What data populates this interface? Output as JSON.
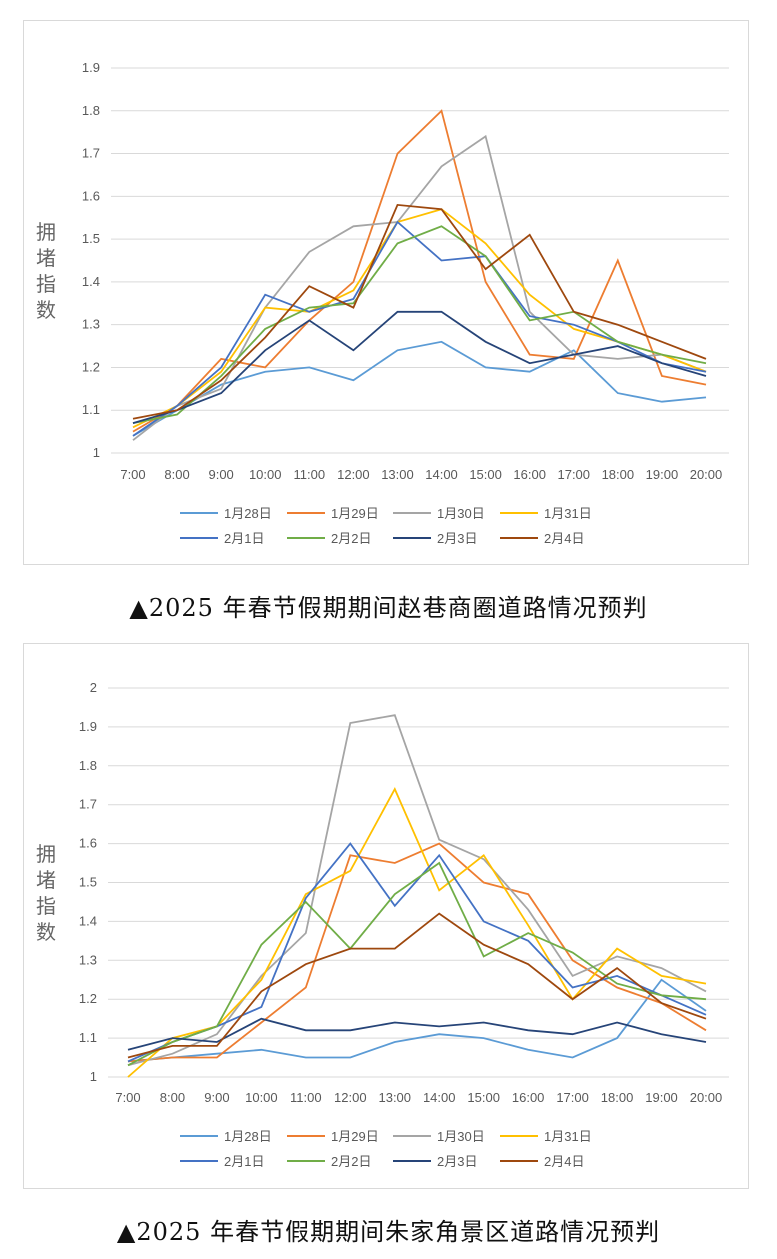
{
  "captions": [
    "▲2025 年春节假期期间赵巷商圈道路情况预判",
    "▲2025 年春节假期期间朱家角景区道路情况预判"
  ],
  "series_colors": {
    "1月28日": "#5b9bd5",
    "1月29日": "#ed7d31",
    "1月30日": "#a5a5a5",
    "1月31日": "#ffc000",
    "2月1日": "#4472c4",
    "2月2日": "#70ad47",
    "2月3日": "#264478",
    "2月4日": "#9e480e"
  },
  "chart_data": [
    {
      "type": "line",
      "title": "2025 年春节假期期间赵巷商圈道路情况预判",
      "xlabel": "",
      "ylabel": "拥堵指数",
      "categories": [
        "7:00",
        "8:00",
        "9:00",
        "10:00",
        "11:00",
        "12:00",
        "13:00",
        "14:00",
        "15:00",
        "16:00",
        "17:00",
        "18:00",
        "19:00",
        "20:00"
      ],
      "ylim": [
        1,
        1.9
      ],
      "yticks": [
        "1",
        "1.1",
        "1.2",
        "1.3",
        "1.4",
        "1.5",
        "1.6",
        "1.7",
        "1.8",
        "1.9"
      ],
      "grid": true,
      "legend": "bottom",
      "series": [
        {
          "name": "1月28日",
          "values": [
            1.04,
            1.1,
            1.16,
            1.19,
            1.2,
            1.17,
            1.24,
            1.26,
            1.2,
            1.19,
            1.24,
            1.14,
            1.12,
            1.13
          ]
        },
        {
          "name": "1月29日",
          "values": [
            1.05,
            1.11,
            1.22,
            1.2,
            1.31,
            1.4,
            1.7,
            1.8,
            1.4,
            1.23,
            1.22,
            1.45,
            1.18,
            1.16
          ]
        },
        {
          "name": "1月30日",
          "values": [
            1.03,
            1.11,
            1.15,
            1.34,
            1.47,
            1.53,
            1.54,
            1.67,
            1.74,
            1.33,
            1.23,
            1.22,
            1.23,
            1.19
          ]
        },
        {
          "name": "1月31日",
          "values": [
            1.06,
            1.11,
            1.19,
            1.34,
            1.33,
            1.38,
            1.54,
            1.57,
            1.49,
            1.37,
            1.29,
            1.26,
            1.23,
            1.19
          ]
        },
        {
          "name": "2月1日",
          "values": [
            1.04,
            1.11,
            1.2,
            1.37,
            1.33,
            1.36,
            1.54,
            1.45,
            1.46,
            1.32,
            1.3,
            1.26,
            1.21,
            1.19
          ]
        },
        {
          "name": "2月2日",
          "values": [
            1.07,
            1.09,
            1.18,
            1.29,
            1.34,
            1.35,
            1.49,
            1.53,
            1.46,
            1.31,
            1.33,
            1.26,
            1.23,
            1.21
          ]
        },
        {
          "name": "2月3日",
          "values": [
            1.07,
            1.1,
            1.14,
            1.24,
            1.31,
            1.24,
            1.33,
            1.33,
            1.26,
            1.21,
            1.23,
            1.25,
            1.21,
            1.18
          ]
        },
        {
          "name": "2月4日",
          "values": [
            1.08,
            1.1,
            1.17,
            1.27,
            1.39,
            1.34,
            1.58,
            1.57,
            1.43,
            1.51,
            1.33,
            1.3,
            1.26,
            1.22
          ]
        }
      ]
    },
    {
      "type": "line",
      "title": "2025 年春节假期期间朱家角景区道路情况预判",
      "xlabel": "",
      "ylabel": "拥堵指数",
      "categories": [
        "7:00",
        "8:00",
        "9:00",
        "10:00",
        "11:00",
        "12:00",
        "13:00",
        "14:00",
        "15:00",
        "16:00",
        "17:00",
        "18:00",
        "19:00",
        "20:00"
      ],
      "ylim": [
        1,
        2
      ],
      "yticks": [
        "1",
        "1.1",
        "1.2",
        "1.3",
        "1.4",
        "1.5",
        "1.6",
        "1.7",
        "1.8",
        "1.9",
        "2"
      ],
      "grid": true,
      "legend": "bottom",
      "series": [
        {
          "name": "1月28日",
          "values": [
            1.04,
            1.05,
            1.06,
            1.07,
            1.05,
            1.05,
            1.09,
            1.11,
            1.1,
            1.07,
            1.05,
            1.1,
            1.25,
            1.17
          ]
        },
        {
          "name": "1月29日",
          "values": [
            1.04,
            1.05,
            1.05,
            1.14,
            1.23,
            1.57,
            1.55,
            1.6,
            1.5,
            1.47,
            1.3,
            1.23,
            1.19,
            1.12
          ]
        },
        {
          "name": "1月30日",
          "values": [
            1.03,
            1.06,
            1.11,
            1.26,
            1.37,
            1.91,
            1.93,
            1.61,
            1.56,
            1.43,
            1.26,
            1.31,
            1.28,
            1.22
          ]
        },
        {
          "name": "1月31日",
          "values": [
            1.0,
            1.1,
            1.13,
            1.25,
            1.47,
            1.53,
            1.74,
            1.48,
            1.57,
            1.39,
            1.2,
            1.33,
            1.26,
            1.24
          ]
        },
        {
          "name": "2月1日",
          "values": [
            1.04,
            1.09,
            1.13,
            1.18,
            1.46,
            1.6,
            1.44,
            1.57,
            1.4,
            1.35,
            1.23,
            1.26,
            1.21,
            1.16
          ]
        },
        {
          "name": "2月2日",
          "values": [
            1.03,
            1.09,
            1.13,
            1.34,
            1.45,
            1.33,
            1.47,
            1.55,
            1.31,
            1.37,
            1.32,
            1.24,
            1.21,
            1.2
          ]
        },
        {
          "name": "2月3日",
          "values": [
            1.07,
            1.1,
            1.09,
            1.15,
            1.12,
            1.12,
            1.14,
            1.13,
            1.14,
            1.12,
            1.11,
            1.14,
            1.11,
            1.09
          ]
        },
        {
          "name": "2月4日",
          "values": [
            1.05,
            1.08,
            1.08,
            1.22,
            1.29,
            1.33,
            1.33,
            1.42,
            1.34,
            1.29,
            1.2,
            1.28,
            1.19,
            1.15
          ]
        }
      ]
    }
  ]
}
